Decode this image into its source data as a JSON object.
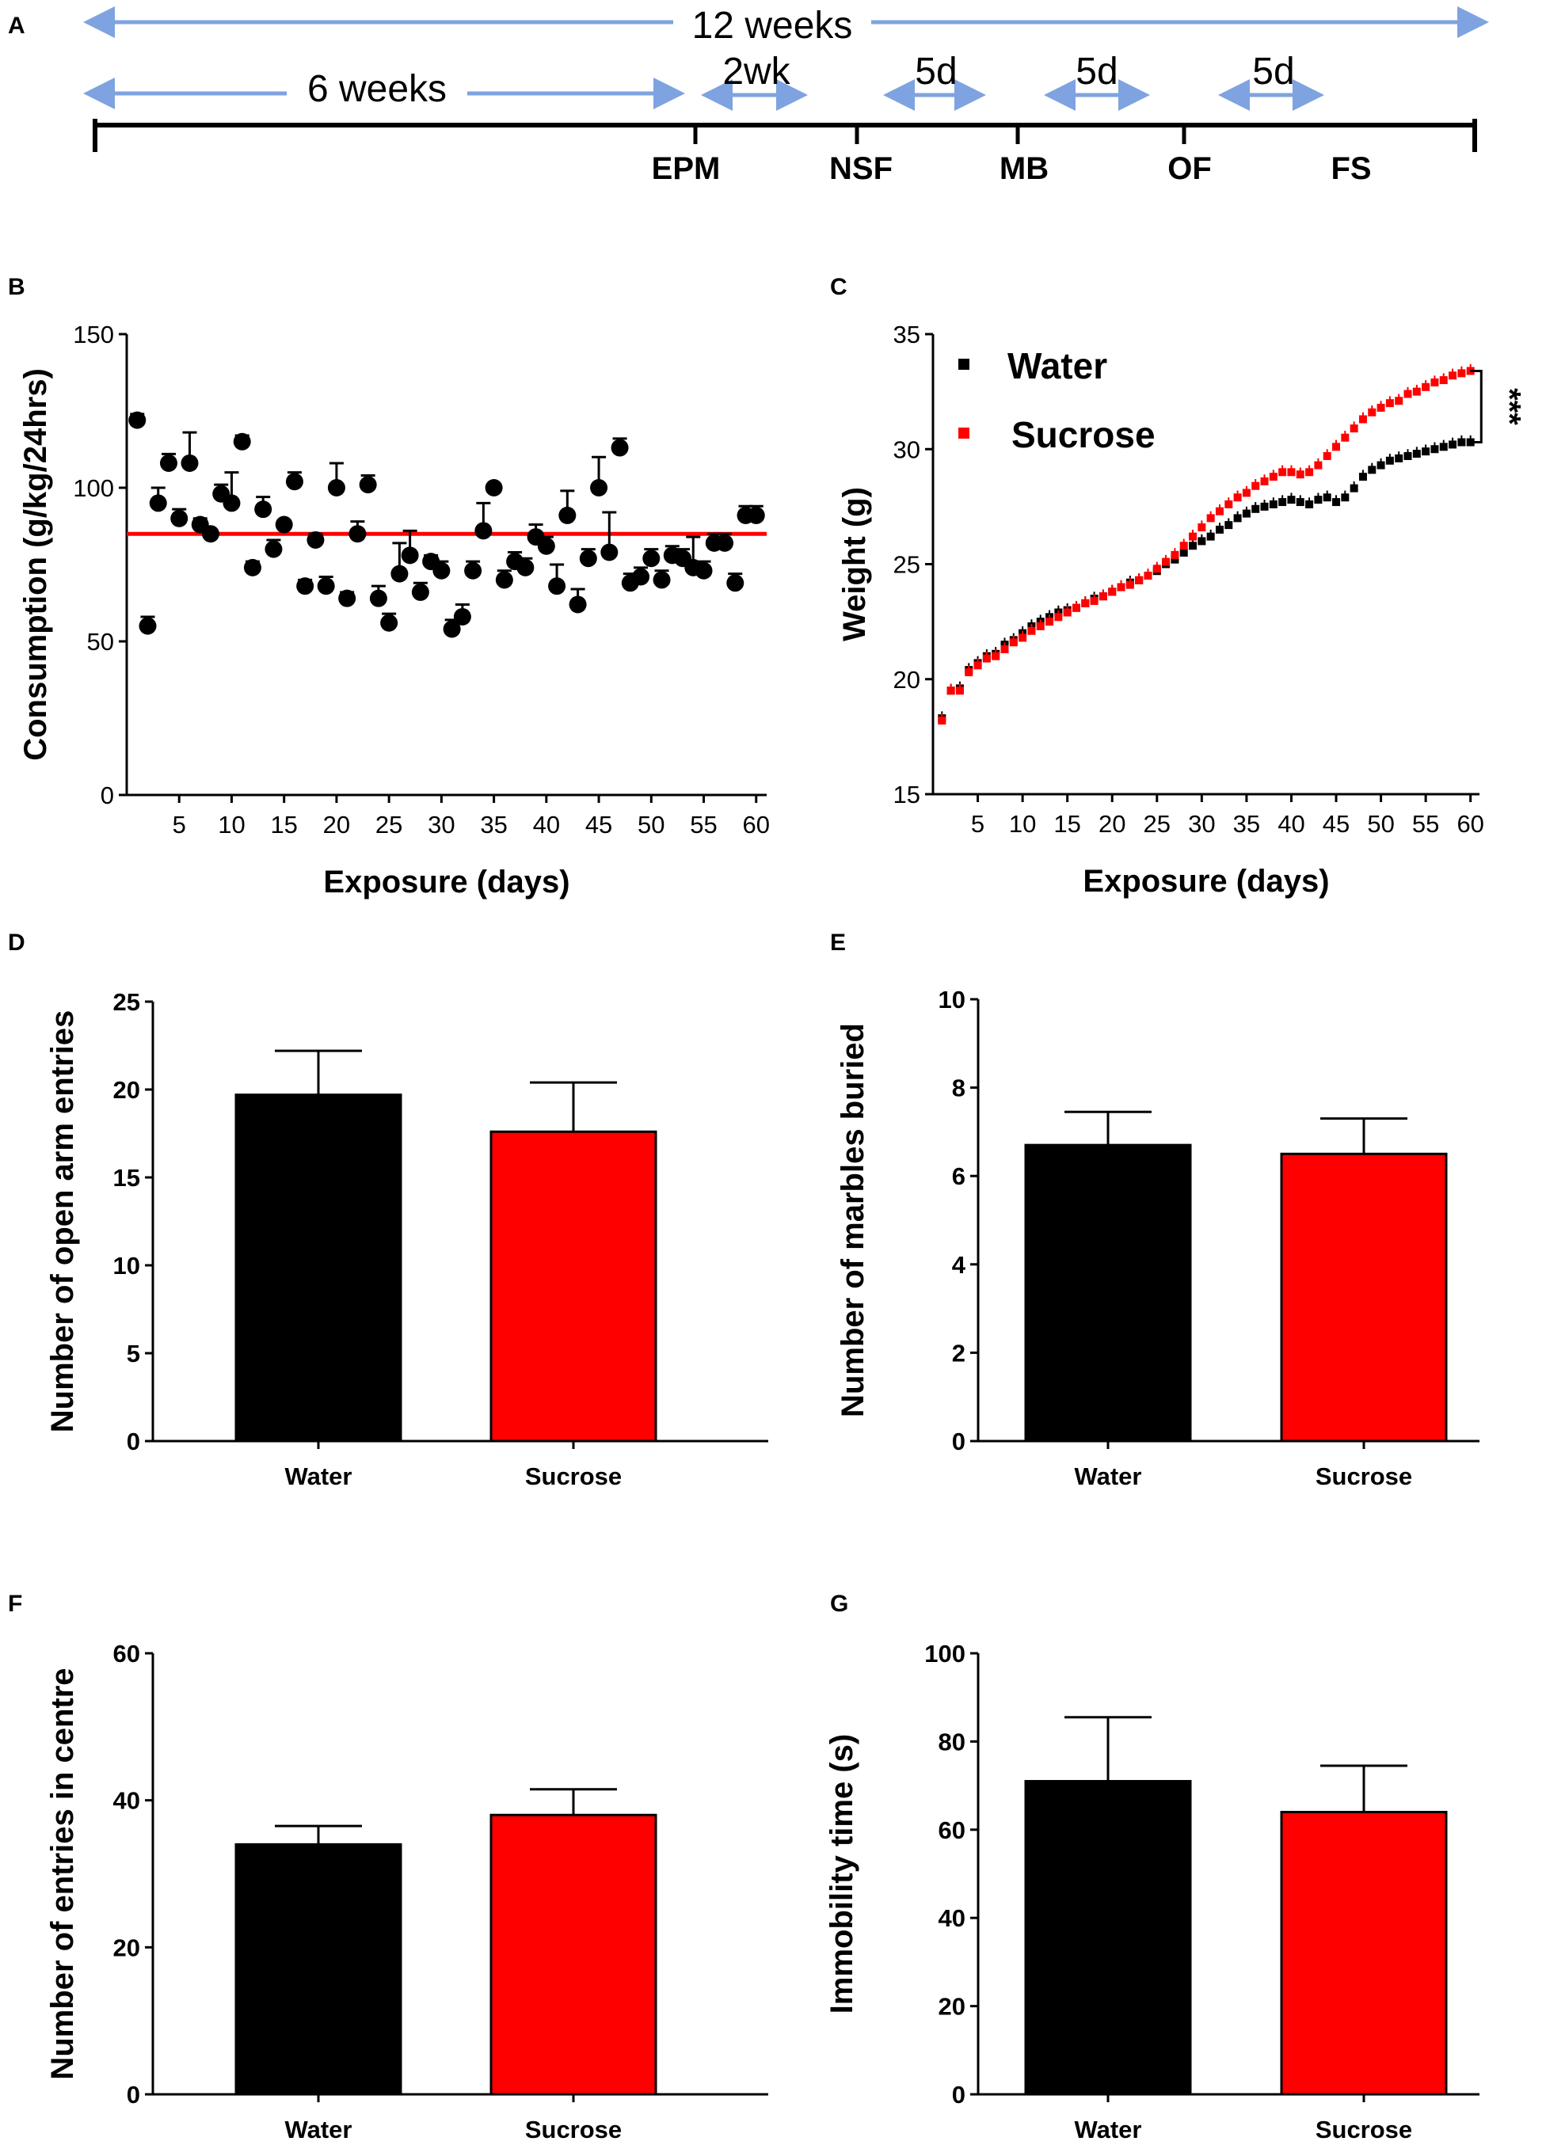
{
  "colors": {
    "water": "#000000",
    "sucrose": "#ff0000",
    "arrow": "#7ea3e0",
    "mean_line": "#ff0000"
  },
  "panel_letters": [
    "A",
    "B",
    "C",
    "D",
    "E",
    "F",
    "G"
  ],
  "timeline": {
    "total_label": "12 weeks",
    "first_label": "6 weeks",
    "interval_labels": [
      "2wk",
      "5d",
      "5d",
      "5d"
    ],
    "tests": [
      "EPM",
      "NSF",
      "MB",
      "OF",
      "FS"
    ]
  },
  "chart_data": [
    {
      "id": "B",
      "type": "scatter",
      "xlabel": "Exposure (days)",
      "ylabel": "Consumption (g/kg/24hrs)",
      "xlim": [
        0,
        61
      ],
      "ylim": [
        0,
        150
      ],
      "xticks": [
        5,
        10,
        15,
        20,
        25,
        30,
        35,
        40,
        45,
        50,
        55,
        60
      ],
      "yticks": [
        0,
        50,
        100,
        150
      ],
      "mean_line": 85,
      "x": [
        1,
        2,
        3,
        4,
        5,
        6,
        7,
        8,
        9,
        10,
        11,
        12,
        13,
        14,
        15,
        16,
        17,
        18,
        19,
        20,
        21,
        22,
        23,
        24,
        25,
        26,
        27,
        28,
        29,
        30,
        31,
        32,
        33,
        34,
        35,
        36,
        37,
        38,
        39,
        40,
        41,
        42,
        43,
        44,
        45,
        46,
        47,
        48,
        49,
        50,
        51,
        52,
        53,
        54,
        55,
        56,
        57,
        58,
        59,
        60
      ],
      "values": [
        122,
        55,
        95,
        108,
        90,
        108,
        88,
        85,
        98,
        95,
        115,
        74,
        93,
        80,
        88,
        102,
        68,
        83,
        68,
        100,
        64,
        85,
        101,
        64,
        56,
        72,
        78,
        66,
        76,
        73,
        54,
        58,
        73,
        86,
        100,
        70,
        76,
        74,
        84,
        81,
        68,
        91,
        62,
        77,
        100,
        79,
        113,
        69,
        71,
        77,
        70,
        78,
        77,
        74,
        73,
        82,
        82,
        69,
        91,
        91
      ],
      "errors": [
        2,
        3,
        5,
        3,
        3,
        10,
        2,
        1,
        3,
        10,
        2,
        2,
        4,
        3,
        1,
        3,
        2,
        2,
        3,
        8,
        2,
        4,
        3,
        4,
        3,
        10,
        8,
        3,
        2,
        3,
        3,
        4,
        3,
        9,
        1,
        3,
        3,
        3,
        4,
        3,
        7,
        8,
        5,
        3,
        10,
        13,
        3,
        3,
        3,
        3,
        3,
        3,
        3,
        10,
        3,
        3,
        3,
        3,
        3,
        3
      ]
    },
    {
      "id": "C",
      "type": "line",
      "xlabel": "Exposure (days)",
      "ylabel": "Weight (g)",
      "xlim": [
        0,
        61
      ],
      "ylim": [
        15,
        35
      ],
      "xticks": [
        5,
        10,
        15,
        20,
        25,
        30,
        35,
        40,
        45,
        50,
        55,
        60
      ],
      "yticks": [
        15,
        20,
        25,
        30,
        35
      ],
      "significance": "***",
      "series": [
        {
          "name": "Water",
          "color": "#000000",
          "x": [
            1,
            2,
            3,
            4,
            5,
            6,
            7,
            8,
            9,
            10,
            11,
            12,
            13,
            14,
            15,
            16,
            17,
            18,
            19,
            20,
            21,
            22,
            23,
            24,
            25,
            26,
            27,
            28,
            29,
            30,
            31,
            32,
            33,
            34,
            35,
            36,
            37,
            38,
            39,
            40,
            41,
            42,
            43,
            44,
            45,
            46,
            47,
            48,
            49,
            50,
            51,
            52,
            53,
            54,
            55,
            56,
            57,
            58,
            59,
            60
          ],
          "values": [
            18.3,
            19.5,
            19.6,
            20.4,
            20.7,
            21.0,
            21.1,
            21.5,
            21.7,
            22.0,
            22.3,
            22.5,
            22.7,
            22.9,
            23.0,
            23.1,
            23.3,
            23.5,
            23.6,
            23.8,
            24.0,
            24.2,
            24.3,
            24.5,
            24.7,
            25.0,
            25.2,
            25.5,
            25.8,
            26.0,
            26.2,
            26.5,
            26.7,
            27.0,
            27.2,
            27.4,
            27.5,
            27.6,
            27.7,
            27.8,
            27.7,
            27.6,
            27.8,
            27.9,
            27.7,
            27.9,
            28.3,
            28.8,
            29.1,
            29.3,
            29.5,
            29.6,
            29.7,
            29.8,
            29.9,
            30.0,
            30.1,
            30.2,
            30.3,
            30.3
          ],
          "errors": [
            0.3,
            0.3,
            0.3,
            0.3,
            0.3,
            0.3,
            0.3,
            0.3,
            0.3,
            0.3,
            0.3,
            0.3,
            0.3,
            0.3,
            0.3,
            0.3,
            0.3,
            0.3,
            0.3,
            0.3,
            0.3,
            0.3,
            0.3,
            0.3,
            0.3,
            0.3,
            0.3,
            0.3,
            0.3,
            0.3,
            0.3,
            0.3,
            0.3,
            0.3,
            0.3,
            0.3,
            0.3,
            0.3,
            0.3,
            0.3,
            0.3,
            0.3,
            0.3,
            0.3,
            0.3,
            0.3,
            0.3,
            0.3,
            0.3,
            0.3,
            0.3,
            0.3,
            0.3,
            0.3,
            0.3,
            0.3,
            0.3,
            0.3,
            0.3,
            0.3
          ]
        },
        {
          "name": "Sucrose",
          "color": "#ff0000",
          "x": [
            1,
            2,
            3,
            4,
            5,
            6,
            7,
            8,
            9,
            10,
            11,
            12,
            13,
            14,
            15,
            16,
            17,
            18,
            19,
            20,
            21,
            22,
            23,
            24,
            25,
            26,
            27,
            28,
            29,
            30,
            31,
            32,
            33,
            34,
            35,
            36,
            37,
            38,
            39,
            40,
            41,
            42,
            43,
            44,
            45,
            46,
            47,
            48,
            49,
            50,
            51,
            52,
            53,
            54,
            55,
            56,
            57,
            58,
            59,
            60
          ],
          "values": [
            18.2,
            19.5,
            19.5,
            20.3,
            20.6,
            20.9,
            21.0,
            21.3,
            21.6,
            21.8,
            22.1,
            22.3,
            22.5,
            22.7,
            22.9,
            23.1,
            23.3,
            23.4,
            23.6,
            23.8,
            24.0,
            24.1,
            24.3,
            24.5,
            24.8,
            25.1,
            25.4,
            25.8,
            26.2,
            26.6,
            27.0,
            27.3,
            27.6,
            27.9,
            28.1,
            28.4,
            28.6,
            28.8,
            29.0,
            29.0,
            28.9,
            29.0,
            29.3,
            29.7,
            30.1,
            30.5,
            30.9,
            31.3,
            31.6,
            31.8,
            32.0,
            32.1,
            32.4,
            32.5,
            32.7,
            32.9,
            33.0,
            33.2,
            33.3,
            33.4
          ],
          "errors": [
            0.3,
            0.3,
            0.3,
            0.3,
            0.3,
            0.3,
            0.3,
            0.3,
            0.3,
            0.3,
            0.3,
            0.3,
            0.3,
            0.3,
            0.3,
            0.3,
            0.3,
            0.3,
            0.3,
            0.3,
            0.3,
            0.3,
            0.3,
            0.3,
            0.3,
            0.3,
            0.3,
            0.3,
            0.3,
            0.3,
            0.3,
            0.3,
            0.3,
            0.3,
            0.3,
            0.3,
            0.3,
            0.3,
            0.3,
            0.3,
            0.3,
            0.3,
            0.3,
            0.3,
            0.3,
            0.3,
            0.3,
            0.3,
            0.3,
            0.3,
            0.3,
            0.3,
            0.3,
            0.3,
            0.3,
            0.3,
            0.3,
            0.3,
            0.3,
            0.3
          ]
        }
      ]
    },
    {
      "id": "D",
      "type": "bar",
      "categories": [
        "Water",
        "Sucrose"
      ],
      "values": [
        19.7,
        17.6
      ],
      "errors": [
        2.5,
        2.8
      ],
      "colors": [
        "#000000",
        "#ff0000"
      ],
      "ylabel": "Number of open arm entries",
      "ylim": [
        0,
        25
      ],
      "yticks": [
        0,
        5,
        10,
        15,
        20,
        25
      ]
    },
    {
      "id": "E",
      "type": "bar",
      "categories": [
        "Water",
        "Sucrose"
      ],
      "values": [
        6.7,
        6.5
      ],
      "errors": [
        0.75,
        0.8
      ],
      "colors": [
        "#000000",
        "#ff0000"
      ],
      "ylabel": "Number of marbles buried",
      "ylim": [
        0,
        10
      ],
      "yticks": [
        0,
        2,
        4,
        6,
        8,
        10
      ]
    },
    {
      "id": "F",
      "type": "bar",
      "categories": [
        "Water",
        "Sucrose"
      ],
      "values": [
        34,
        38
      ],
      "errors": [
        2.5,
        3.5
      ],
      "colors": [
        "#000000",
        "#ff0000"
      ],
      "ylabel": "Number of entries in centre",
      "ylim": [
        0,
        60
      ],
      "yticks": [
        0,
        20,
        40,
        60
      ]
    },
    {
      "id": "G",
      "type": "bar",
      "categories": [
        "Water",
        "Sucrose"
      ],
      "values": [
        71,
        64
      ],
      "errors": [
        14.5,
        10.5
      ],
      "colors": [
        "#000000",
        "#ff0000"
      ],
      "ylabel": "Immobility time (s)",
      "ylim": [
        0,
        100
      ],
      "yticks": [
        0,
        20,
        40,
        60,
        80,
        100
      ]
    }
  ]
}
